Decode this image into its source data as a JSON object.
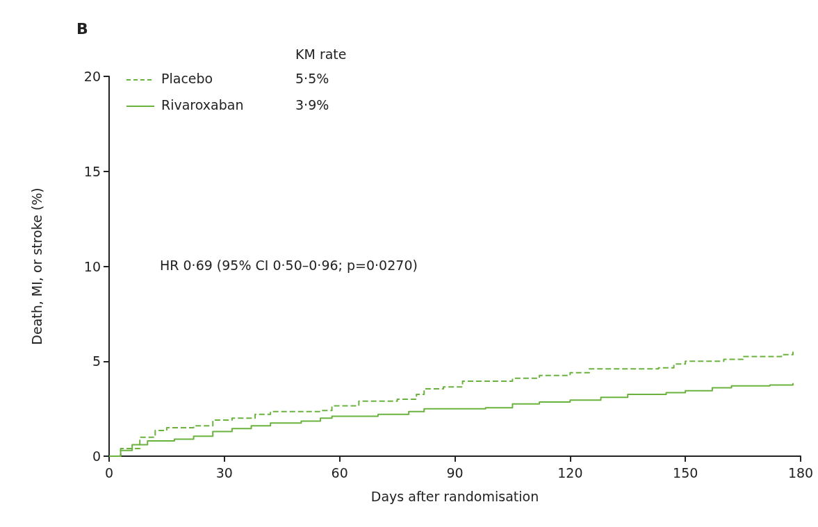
{
  "chart_data": {
    "type": "step",
    "title": "B",
    "xlabel": "Days after randomisation",
    "ylabel": "Death, MI, or stroke (%)",
    "legend_title": "KM rate",
    "annotations": [
      "5·5%",
      "3·9%",
      "HR 0·69 (95% CI 0·50–0·96; p=0·0270)"
    ],
    "x": [
      0,
      3,
      8,
      12,
      15,
      22,
      27,
      32,
      38,
      42,
      55,
      58,
      65,
      75,
      80,
      82,
      87,
      92,
      105,
      112,
      120,
      125,
      143,
      147,
      150,
      160,
      165,
      175,
      178
    ],
    "series": [
      {
        "name": "Placebo",
        "color": "#6ab23e",
        "line_style": "dashed",
        "values": [
          0,
          0.4,
          1.0,
          1.35,
          1.5,
          1.6,
          1.9,
          2.0,
          2.2,
          2.35,
          2.4,
          2.65,
          2.9,
          3.0,
          3.25,
          3.55,
          3.65,
          3.95,
          4.1,
          4.25,
          4.4,
          4.6,
          4.65,
          4.85,
          5.0,
          5.1,
          5.25,
          5.35,
          5.5
        ]
      },
      {
        "name": "Rivaroxaban",
        "color": "#6ab23e",
        "line_style": "solid",
        "x": [
          0,
          3,
          6,
          10,
          17,
          22,
          27,
          32,
          37,
          42,
          50,
          55,
          58,
          70,
          78,
          82,
          98,
          105,
          112,
          120,
          128,
          135,
          145,
          150,
          157,
          162,
          172,
          178
        ],
        "values": [
          0,
          0.3,
          0.6,
          0.8,
          0.9,
          1.05,
          1.3,
          1.45,
          1.6,
          1.75,
          1.85,
          2.0,
          2.1,
          2.2,
          2.35,
          2.5,
          2.55,
          2.75,
          2.85,
          2.95,
          3.1,
          3.25,
          3.35,
          3.45,
          3.6,
          3.7,
          3.75,
          3.85
        ]
      }
    ],
    "xlim": [
      0,
      180
    ],
    "xticks": [
      0,
      30,
      60,
      90,
      120,
      150,
      180
    ],
    "ylim": [
      0,
      20
    ],
    "yticks": [
      0,
      5,
      10,
      15,
      20
    ],
    "grid": false,
    "legend": "top left",
    "marker": "none"
  }
}
